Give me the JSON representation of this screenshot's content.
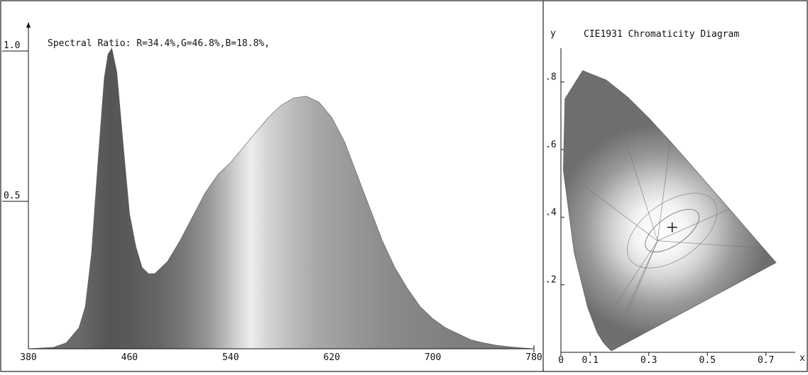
{
  "chart_data": [
    {
      "type": "area",
      "title": "Spectral Ratio:  R=34.4%,G=46.8%,B=18.8%,",
      "xlabel": "",
      "ylabel": "",
      "xlim": [
        380,
        780
      ],
      "ylim": [
        0,
        1.0
      ],
      "x_ticks": [
        380,
        460,
        540,
        620,
        700,
        780
      ],
      "x_tick_labels": [
        "380",
        "460",
        "540",
        "620",
        "700",
        "780"
      ],
      "y_ticks": [
        1.0,
        0.5
      ],
      "y_tick_labels": [
        "1.0",
        "0.5"
      ],
      "fill": "spectral gradient (grayscale)",
      "grid": false,
      "series": [
        {
          "x": [
            380,
            400,
            410,
            420,
            425,
            430,
            435,
            440,
            443,
            446,
            450,
            455,
            460,
            465,
            470,
            475,
            480,
            490,
            500,
            510,
            520,
            530,
            540,
            550,
            560,
            570,
            580,
            590,
            600,
            610,
            620,
            630,
            640,
            650,
            660,
            670,
            680,
            690,
            700,
            710,
            720,
            730,
            740,
            750,
            760,
            770,
            780
          ],
          "values": [
            0.0,
            0.005,
            0.02,
            0.07,
            0.14,
            0.32,
            0.62,
            0.9,
            0.98,
            1.0,
            0.92,
            0.68,
            0.45,
            0.34,
            0.27,
            0.25,
            0.25,
            0.29,
            0.36,
            0.44,
            0.52,
            0.58,
            0.62,
            0.67,
            0.72,
            0.77,
            0.81,
            0.835,
            0.84,
            0.82,
            0.77,
            0.69,
            0.58,
            0.47,
            0.36,
            0.27,
            0.2,
            0.14,
            0.1,
            0.07,
            0.05,
            0.03,
            0.02,
            0.012,
            0.007,
            0.003,
            0.0
          ]
        }
      ]
    },
    {
      "type": "scatter",
      "title": "CIE1931 Chromaticity Diagram",
      "xlabel": "x",
      "ylabel": "y",
      "xlim": [
        0,
        0.8
      ],
      "ylim": [
        0,
        0.9
      ],
      "x_ticks": [
        0,
        0.1,
        0.3,
        0.5,
        0.7
      ],
      "x_tick_labels": [
        "0",
        "0.1",
        "0.3",
        "0.5",
        "0.7"
      ],
      "y_ticks": [
        0.8,
        0.6,
        0.4,
        0.2
      ],
      "y_tick_labels": [
        ".8",
        ".6",
        ".4",
        ".2"
      ],
      "locus": {
        "x": [
          0.1741,
          0.1714,
          0.1689,
          0.1644,
          0.1566,
          0.144,
          0.1241,
          0.0913,
          0.0454,
          0.0082,
          0.0139,
          0.0743,
          0.1547,
          0.2296,
          0.3016,
          0.3731,
          0.4441,
          0.5125,
          0.5752,
          0.627,
          0.6658,
          0.6915,
          0.7079,
          0.7347
        ],
        "y": [
          0.005,
          0.0051,
          0.0069,
          0.0109,
          0.0177,
          0.0297,
          0.0578,
          0.1327,
          0.295,
          0.5384,
          0.7502,
          0.8338,
          0.8059,
          0.7543,
          0.6923,
          0.6245,
          0.5547,
          0.4866,
          0.4242,
          0.3725,
          0.334,
          0.3083,
          0.292,
          0.2653
        ]
      },
      "point": {
        "x": 0.38,
        "y": 0.37,
        "marker": "+"
      }
    }
  ]
}
